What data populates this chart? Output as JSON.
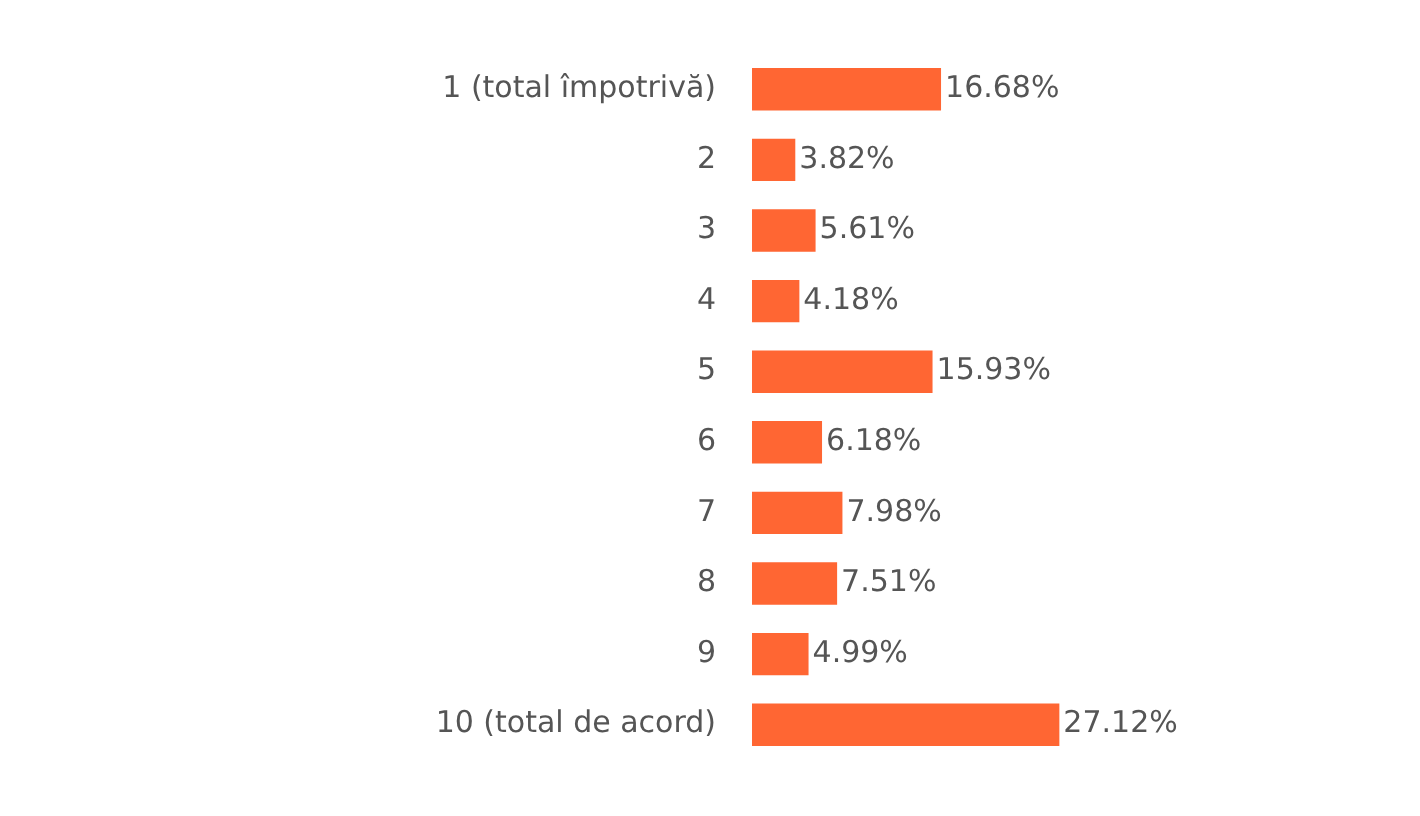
{
  "chart_data": {
    "type": "bar",
    "orientation": "horizontal",
    "categories": [
      "1 (total împotrivă)",
      "2",
      "3",
      "4",
      "5",
      "6",
      "7",
      "8",
      "9",
      "10 (total de acord)"
    ],
    "values": [
      16.68,
      3.82,
      5.61,
      4.18,
      15.93,
      6.18,
      7.98,
      7.51,
      4.99,
      27.12
    ],
    "value_labels": [
      "16.68%",
      "3.82%",
      "5.61%",
      "4.18%",
      "15.93%",
      "6.18%",
      "7.98%",
      "7.51%",
      "4.99%",
      "27.12%"
    ],
    "color": "#ff6633",
    "grid": false,
    "legend": false
  }
}
